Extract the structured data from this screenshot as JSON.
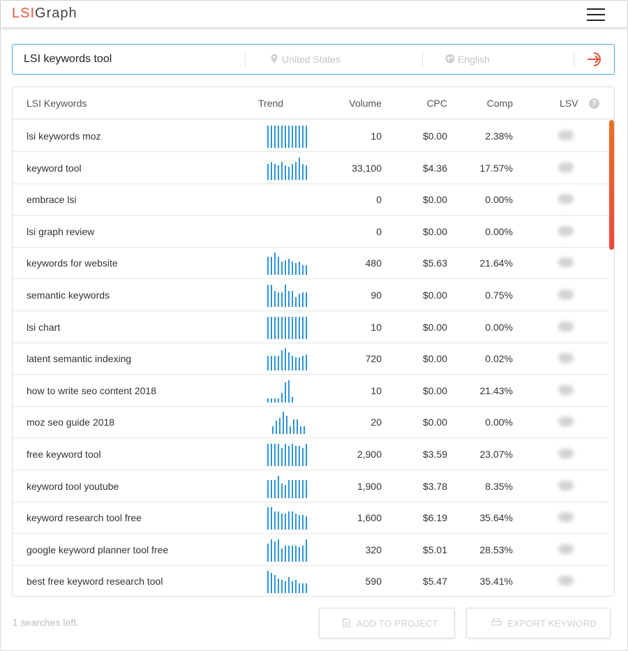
{
  "app": {
    "logo_part1": "LSI",
    "logo_part2": "Graph"
  },
  "search": {
    "query": "LSI keywords tool",
    "location": "United States",
    "language": "English"
  },
  "table": {
    "headers": {
      "keyword": "LSI Keywords",
      "trend": "Trend",
      "volume": "Volume",
      "cpc": "CPC",
      "comp": "Comp",
      "lsv": "LSV",
      "help": "?"
    },
    "rows": [
      {
        "keyword": "lsi keywords moz",
        "volume": "10",
        "cpc": "$0.00",
        "comp": "2.38%",
        "trend": [
          1,
          1,
          1,
          1,
          1,
          1,
          1,
          1,
          1,
          1,
          1,
          1
        ]
      },
      {
        "keyword": "keyword tool",
        "volume": "33,100",
        "cpc": "$4.36",
        "comp": "17.57%",
        "trend": [
          0.72,
          0.82,
          0.72,
          0.65,
          0.82,
          0.65,
          0.58,
          0.72,
          0.82,
          1,
          0.72,
          0.65
        ]
      },
      {
        "keyword": "embrace lsi",
        "volume": "0",
        "cpc": "$0.00",
        "comp": "0.00%",
        "trend": []
      },
      {
        "keyword": "lsi graph review",
        "volume": "0",
        "cpc": "$0.00",
        "comp": "0.00%",
        "trend": []
      },
      {
        "keyword": "keywords for website",
        "volume": "480",
        "cpc": "$5.63",
        "comp": "21.64%",
        "trend": [
          0.82,
          0.82,
          1,
          0.82,
          0.58,
          0.65,
          0.72,
          0.58,
          0.52,
          0.58,
          0.45,
          0.45
        ]
      },
      {
        "keyword": "semantic keywords",
        "volume": "90",
        "cpc": "$0.00",
        "comp": "0.75%",
        "trend": [
          1,
          1,
          0.72,
          0.65,
          0.65,
          1,
          0.72,
          0.72,
          0.45,
          0.58,
          0.65,
          0.65
        ]
      },
      {
        "keyword": "lsi chart",
        "volume": "10",
        "cpc": "$0.00",
        "comp": "0.00%",
        "trend": [
          1,
          1,
          1,
          1,
          1,
          1,
          1,
          1,
          1,
          1,
          1,
          1
        ]
      },
      {
        "keyword": "latent semantic indexing",
        "volume": "720",
        "cpc": "$0.00",
        "comp": "0.02%",
        "trend": [
          0.65,
          0.65,
          0.65,
          0.65,
          0.9,
          1,
          0.82,
          0.65,
          0.58,
          0.58,
          0.65,
          0.72
        ]
      },
      {
        "keyword": "how to write seo content 2018",
        "volume": "10",
        "cpc": "$0.00",
        "comp": "21.43%",
        "trend": [
          0.2,
          0.2,
          0.2,
          0.2,
          0.45,
          0.9,
          1,
          0.25
        ]
      },
      {
        "keyword": "moz seo guide 2018",
        "volume": "20",
        "cpc": "$0.00",
        "comp": "0.00%",
        "trend": [
          0,
          0.35,
          0.58,
          0.72,
          1,
          0.82,
          0.35,
          0.65,
          0.65,
          0.35,
          0.35
        ]
      },
      {
        "keyword": "free keyword tool",
        "volume": "2,900",
        "cpc": "$3.59",
        "comp": "23.07%",
        "trend": [
          1,
          1,
          1,
          1,
          0.82,
          1,
          0.9,
          1,
          0.9,
          0.9,
          0.82,
          1
        ]
      },
      {
        "keyword": "keyword tool youtube",
        "volume": "1,900",
        "cpc": "$3.78",
        "comp": "8.35%",
        "trend": [
          0.82,
          0.82,
          0.82,
          1,
          0.65,
          0.58,
          0.82,
          0.82,
          0.82,
          0.82,
          0.82,
          0.82
        ]
      },
      {
        "keyword": "keyword research tool free",
        "volume": "1,600",
        "cpc": "$6.19",
        "comp": "35.64%",
        "trend": [
          1,
          1,
          0.82,
          0.82,
          0.72,
          0.72,
          0.82,
          0.82,
          0.72,
          0.65,
          0.65,
          0.58
        ]
      },
      {
        "keyword": "google keyword planner tool free",
        "volume": "320",
        "cpc": "$5.01",
        "comp": "28.53%",
        "trend": [
          0.82,
          1,
          0.9,
          1,
          0.58,
          0.72,
          0.72,
          0.72,
          0.72,
          0.65,
          0.72,
          1
        ]
      },
      {
        "keyword": "best free keyword research tool",
        "volume": "590",
        "cpc": "$5.47",
        "comp": "35.41%",
        "trend": [
          1,
          0.9,
          0.82,
          0.65,
          0.58,
          0.52,
          0.72,
          0.52,
          0.58,
          0.45,
          0.45,
          0.45
        ]
      }
    ]
  },
  "footer": {
    "searches_left": "1 searches left.",
    "add_to_project": "ADD TO PROJECT",
    "export_keyword": "EXPORT KEYWORD"
  },
  "colors": {
    "accent_red": "#e8573f",
    "trend_blue": "#2e93dd",
    "search_border": "#4aa3df"
  },
  "icons": [
    "menu-icon",
    "location-pin-icon",
    "globe-icon",
    "search-go-icon",
    "help-icon",
    "document-icon",
    "export-icon"
  ]
}
